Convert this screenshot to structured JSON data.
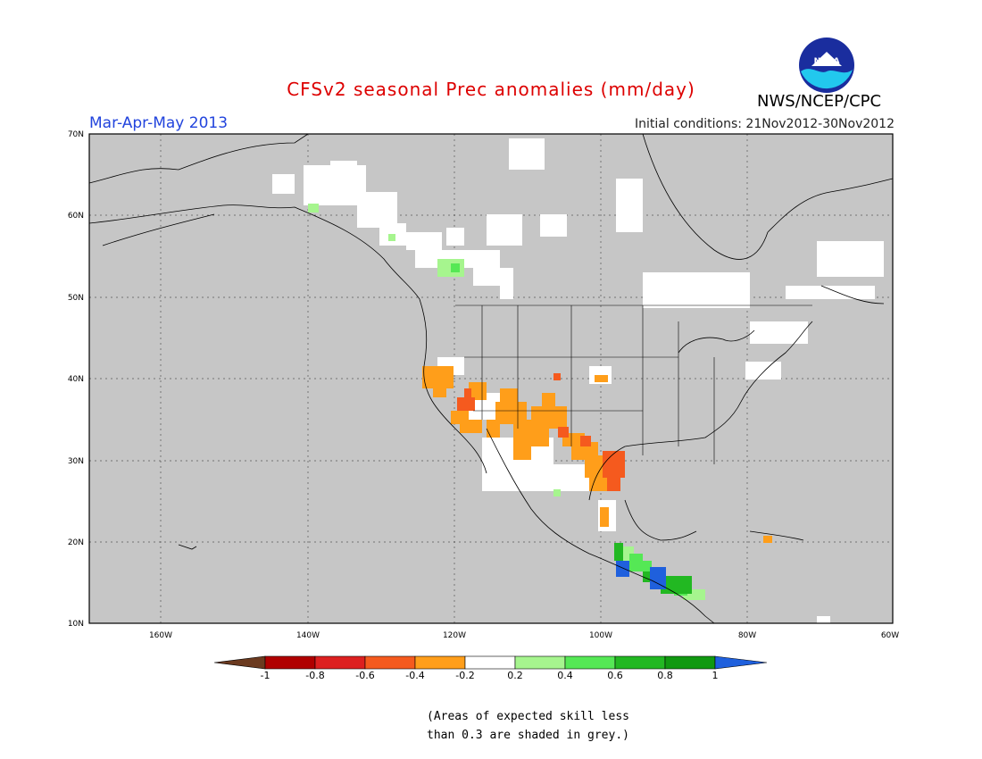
{
  "title": "CFSv2 seasonal Prec anomalies (mm/day)",
  "season": "Mar-Apr-May 2013",
  "initial_conditions": "Initial conditions: 21Nov2012-30Nov2012",
  "agency": "NWS/NCEP/CPC",
  "logo_text": "NOAA",
  "lat_labels": [
    "70N",
    "60N",
    "50N",
    "40N",
    "30N",
    "20N",
    "10N"
  ],
  "lon_labels": [
    "160W",
    "140W",
    "120W",
    "100W",
    "80W",
    "60W"
  ],
  "colorbar": {
    "labels": [
      "-1",
      "-0.8",
      "-0.6",
      "-0.4",
      "-0.2",
      "0.2",
      "0.4",
      "0.6",
      "0.8",
      "1"
    ],
    "colors": [
      "#6b3a1f",
      "#b00000",
      "#dd2020",
      "#f55a1e",
      "#ff9e1a",
      "#ffffff",
      "#a6f58e",
      "#55e855",
      "#22b822",
      "#109910",
      "#1f60dd"
    ]
  },
  "note_lines": [
    "(Areas of expected skill less",
    "than 0.3 are shaded in grey.)"
  ],
  "colors": {
    "grey_mask": "#c6c6c6",
    "title": "#dd0000",
    "season": "#2244dd"
  }
}
